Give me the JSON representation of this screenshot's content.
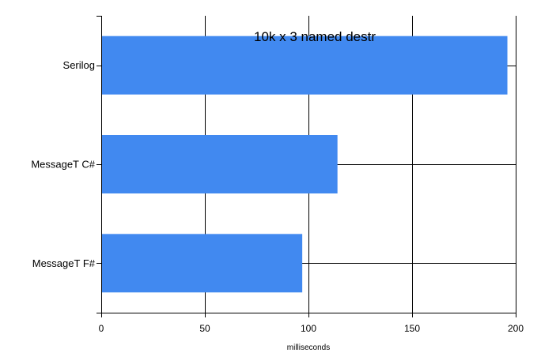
{
  "chart_data": {
    "type": "bar",
    "orientation": "horizontal",
    "title": "10k x 3 named destr",
    "xlabel": "milliseconds",
    "ylabel": "",
    "categories": [
      "Serilog",
      "MessageT C#",
      "MessageT F#"
    ],
    "values": [
      196,
      114,
      97
    ],
    "xlim": [
      0,
      200
    ],
    "xticks": [
      "0",
      "50",
      "100",
      "150",
      "200"
    ],
    "grid": true,
    "legend": "none",
    "bar_color": "#4189f0",
    "axis_color": "#000000"
  }
}
